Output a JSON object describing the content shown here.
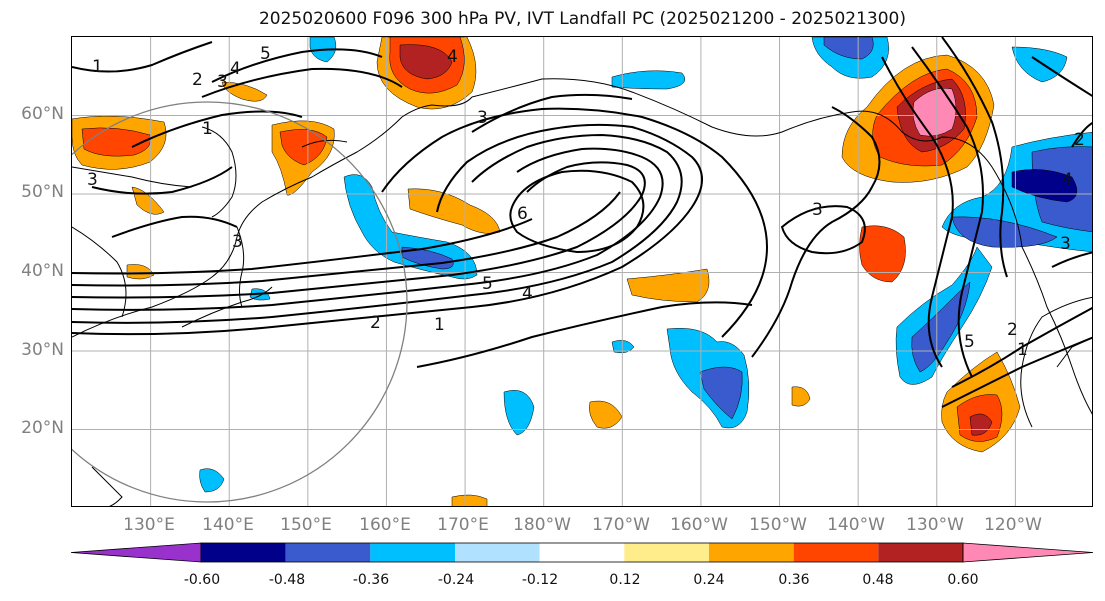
{
  "title": "2025020600 F096 300 hPa PV, IVT Landfall PC (2025021200 - 2025021300)",
  "map": {
    "lon_range": [
      120,
      250
    ],
    "lat_range": [
      10,
      70
    ],
    "lat_ticks": [
      {
        "value": 20,
        "label": "20°N"
      },
      {
        "value": 30,
        "label": "30°N"
      },
      {
        "value": 40,
        "label": "40°N"
      },
      {
        "value": 50,
        "label": "50°N"
      },
      {
        "value": 60,
        "label": "60°N"
      }
    ],
    "lon_ticks": [
      {
        "value": 130,
        "label": "130°E"
      },
      {
        "value": 140,
        "label": "140°E"
      },
      {
        "value": 150,
        "label": "150°E"
      },
      {
        "value": 160,
        "label": "160°E"
      },
      {
        "value": 170,
        "label": "170°E"
      },
      {
        "value": 180,
        "label": "180°W"
      },
      {
        "value": 190,
        "label": "170°W"
      },
      {
        "value": 200,
        "label": "160°W"
      },
      {
        "value": 210,
        "label": "150°W"
      },
      {
        "value": 220,
        "label": "140°W"
      },
      {
        "value": 230,
        "label": "130°W"
      },
      {
        "value": 240,
        "label": "120°W"
      }
    ],
    "gridlines": true,
    "contour_labels": [
      "1",
      "2",
      "3",
      "4",
      "5",
      "6"
    ],
    "circle_color": "#808080"
  },
  "colorbar": {
    "levels": [
      "-0.60",
      "-0.48",
      "-0.36",
      "-0.24",
      "-0.12",
      "0.12",
      "0.24",
      "0.36",
      "0.48",
      "0.60"
    ],
    "colors": [
      "#9932cc",
      "#00008b",
      "#3a5bcd",
      "#00bfff",
      "#b0e2ff",
      "#ffffff",
      "#ffec8b",
      "#ffa500",
      "#ff4500",
      "#b22222",
      "#ff88b4"
    ],
    "extend": "both"
  }
}
